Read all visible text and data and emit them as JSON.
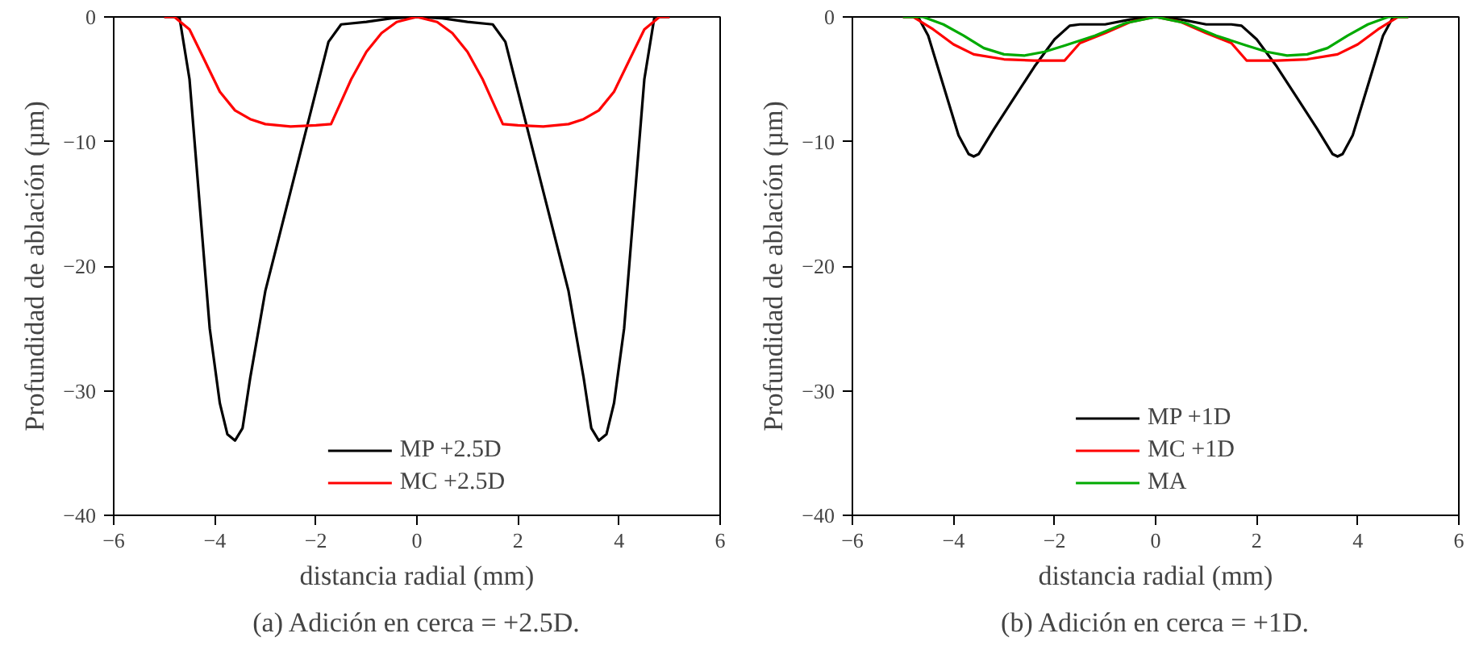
{
  "chart_data": [
    {
      "type": "line",
      "title": "(a) Adición en cerca = +2.5D.",
      "xlabel": "distancia radial (mm)",
      "ylabel": "Profundidad de ablación (µm)",
      "xlim": [
        -6,
        6
      ],
      "ylim": [
        -40,
        0
      ],
      "xticks": [
        -6,
        -4,
        -2,
        0,
        2,
        4,
        6
      ],
      "yticks": [
        -40,
        -30,
        -20,
        -10,
        0
      ],
      "legend": "bottom",
      "grid": false,
      "series": [
        {
          "name": "MP +2.5D",
          "color": "#000000",
          "x": [
            -5,
            -4.7,
            -4.5,
            -4.3,
            -4.1,
            -3.9,
            -3.75,
            -3.6,
            -3.45,
            -3.3,
            -3,
            -2.5,
            -2,
            -1.75,
            -1.5,
            -1,
            -0.5,
            0,
            0.5,
            1,
            1.5,
            1.75,
            2,
            2.5,
            3,
            3.3,
            3.45,
            3.6,
            3.75,
            3.9,
            4.1,
            4.3,
            4.5,
            4.7,
            5
          ],
          "values": [
            0,
            0,
            -5,
            -15,
            -25,
            -31,
            -33.5,
            -34,
            -33,
            -29,
            -22,
            -14,
            -6,
            -2,
            -0.6,
            -0.4,
            -0.1,
            0,
            -0.1,
            -0.4,
            -0.6,
            -2,
            -6,
            -14,
            -22,
            -29,
            -33,
            -34,
            -33.5,
            -31,
            -25,
            -15,
            -5,
            0,
            0
          ]
        },
        {
          "name": "MC +2.5D",
          "color": "#ff0000",
          "x": [
            -5,
            -4.8,
            -4.5,
            -4.2,
            -3.9,
            -3.6,
            -3.3,
            -3,
            -2.5,
            -2,
            -1.7,
            -1.5,
            -1.3,
            -1,
            -0.7,
            -0.4,
            0,
            0.4,
            0.7,
            1,
            1.3,
            1.5,
            1.7,
            2,
            2.5,
            3,
            3.3,
            3.6,
            3.9,
            4.2,
            4.5,
            4.8,
            5
          ],
          "values": [
            0,
            0,
            -1,
            -3.5,
            -6,
            -7.5,
            -8.2,
            -8.6,
            -8.8,
            -8.7,
            -8.6,
            -6.8,
            -5,
            -2.8,
            -1.3,
            -0.4,
            0,
            -0.4,
            -1.3,
            -2.8,
            -5,
            -6.8,
            -8.6,
            -8.7,
            -8.8,
            -8.6,
            -8.2,
            -7.5,
            -6,
            -3.5,
            -1,
            0,
            0
          ]
        }
      ]
    },
    {
      "type": "line",
      "title": "(b) Adición en cerca = +1D.",
      "xlabel": "distancia radial (mm)",
      "ylabel": "Profundidad de ablación (µm)",
      "xlim": [
        -6,
        6
      ],
      "ylim": [
        -40,
        0
      ],
      "xticks": [
        -6,
        -4,
        -2,
        0,
        2,
        4,
        6
      ],
      "yticks": [
        -40,
        -30,
        -20,
        -10,
        0
      ],
      "legend": "bottom",
      "grid": false,
      "series": [
        {
          "name": "MP +1D",
          "color": "#000000",
          "x": [
            -5,
            -4.7,
            -4.5,
            -4.2,
            -3.9,
            -3.7,
            -3.6,
            -3.5,
            -3.2,
            -2.8,
            -2.4,
            -2,
            -1.7,
            -1.5,
            -1,
            -0.5,
            0,
            0.5,
            1,
            1.5,
            1.7,
            2,
            2.4,
            2.8,
            3.2,
            3.5,
            3.6,
            3.7,
            3.9,
            4.2,
            4.5,
            4.7,
            5
          ],
          "values": [
            0,
            0,
            -1.5,
            -5.5,
            -9.5,
            -11,
            -11.2,
            -11,
            -9,
            -6.5,
            -4,
            -1.8,
            -0.7,
            -0.6,
            -0.6,
            -0.2,
            0,
            -0.2,
            -0.6,
            -0.6,
            -0.7,
            -1.8,
            -4,
            -6.5,
            -9,
            -11,
            -11.2,
            -11,
            -9.5,
            -5.5,
            -1.5,
            0,
            0
          ]
        },
        {
          "name": "MC +1D",
          "color": "#ff0000",
          "x": [
            -5,
            -4.8,
            -4.4,
            -4,
            -3.6,
            -3,
            -2.4,
            -1.8,
            -1.5,
            -1,
            -0.5,
            0,
            0.5,
            1,
            1.5,
            1.8,
            2.4,
            3,
            3.6,
            4,
            4.4,
            4.8,
            5
          ],
          "values": [
            0,
            0,
            -1,
            -2.2,
            -3,
            -3.4,
            -3.5,
            -3.5,
            -2.1,
            -1.3,
            -0.4,
            0,
            -0.4,
            -1.3,
            -2.1,
            -3.5,
            -3.5,
            -3.4,
            -3,
            -2.2,
            -1,
            0,
            0
          ]
        },
        {
          "name": "MA",
          "color": "#00aa00",
          "x": [
            -5,
            -4.6,
            -4.2,
            -3.8,
            -3.4,
            -3,
            -2.6,
            -2.2,
            -1.8,
            -1.2,
            -0.6,
            0,
            0.6,
            1.2,
            1.8,
            2.2,
            2.6,
            3,
            3.4,
            3.8,
            4.2,
            4.6,
            5
          ],
          "values": [
            0,
            0,
            -0.6,
            -1.5,
            -2.5,
            -3,
            -3.1,
            -2.8,
            -2.3,
            -1.5,
            -0.5,
            0,
            -0.5,
            -1.5,
            -2.3,
            -2.8,
            -3.1,
            -3,
            -2.5,
            -1.5,
            -0.6,
            0,
            0
          ]
        }
      ]
    }
  ]
}
